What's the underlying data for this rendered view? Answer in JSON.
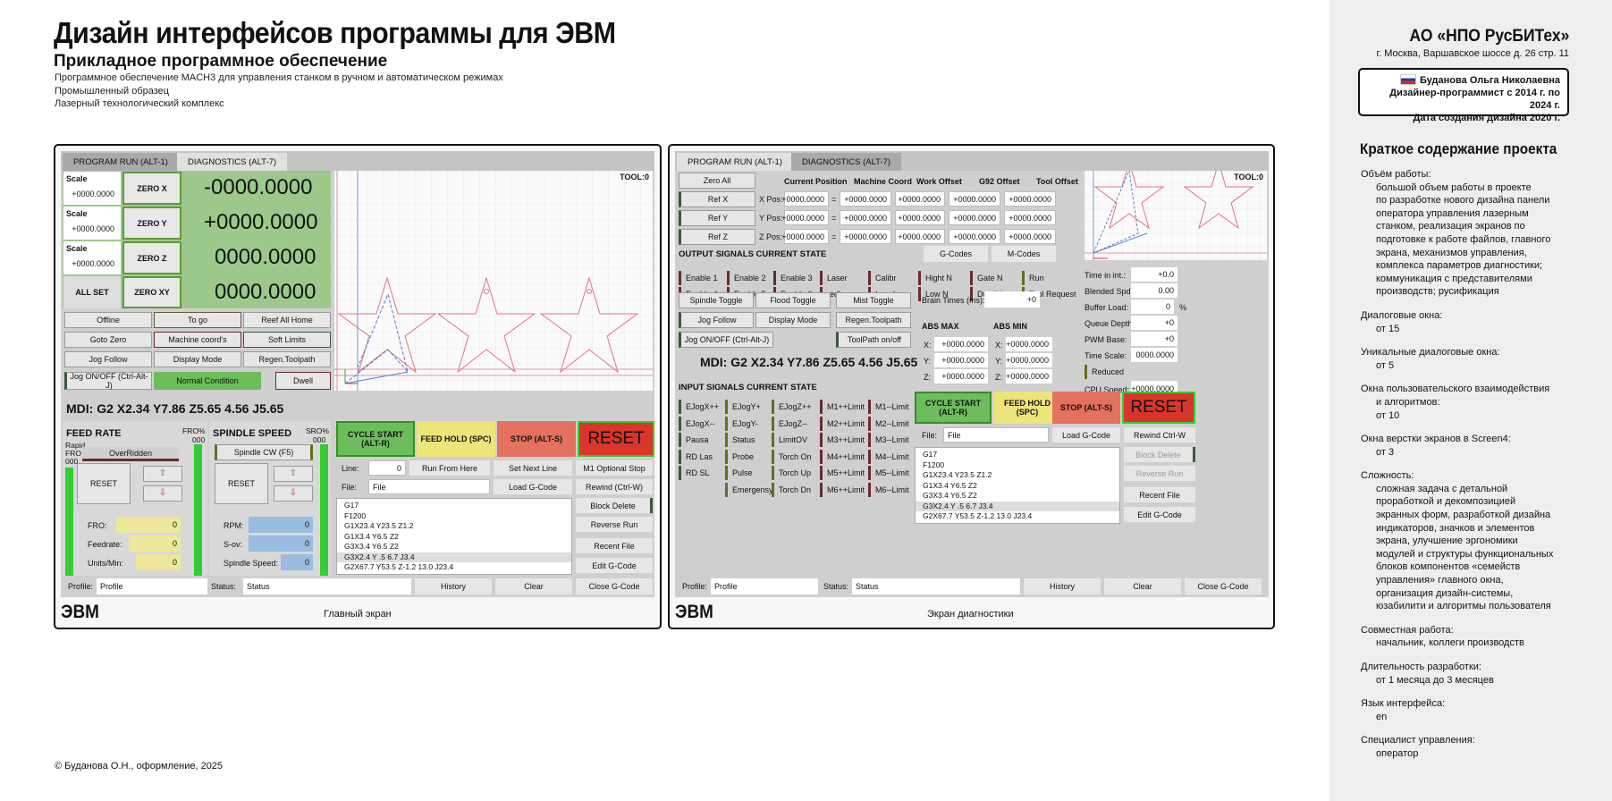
{
  "header": {
    "title": "Дизайн интерфейсов программы для ЭВМ",
    "subtitle": "Прикладное программное обеспечение",
    "lines": [
      "Программное обеспечение MACH3 для управления станком в ручном и автоматическом режимах",
      "Промышленный образец",
      "Лазерный технологический комплекс"
    ]
  },
  "footer": {
    "copyright": "© Буданова О.Н., оформление, 2025"
  },
  "side": {
    "org": "АО «НПО РусБИТех»",
    "address": "г. Москва, Варшавское шоссе д. 26 стр. 11",
    "card": [
      "Буданова Ольга Николаевна",
      "Дизайнер-программист с 2014 г. по 2024 г.",
      "Дата создания дизайна 2020 г."
    ],
    "summary_title": "Краткое содержание проекта",
    "summary": [
      {
        "k": "Объём работы:",
        "v": [
          "большой объем работы в проекте",
          "по разработке нового дизайна панели",
          "оператора управления лазерным",
          "станком, реализация экранов по",
          "подготовке к работе файлов, главного",
          "экрана, механизмов управления,",
          "комплекса параметров диагностики;",
          "коммуникация с представителями",
          "производств; русификация"
        ]
      },
      {
        "k": "Диалоговые окна:",
        "v": [
          "от 15"
        ]
      },
      {
        "k": "Уникальные диалоговые окна:",
        "v": [
          "от 5"
        ]
      },
      {
        "k": "Окна пользовательского взаимодействия",
        "v": [
          "и алгоритмов:",
          "от 10"
        ]
      },
      {
        "k": "Окна верстки экранов в Screen4:",
        "v": [
          "от 3"
        ]
      },
      {
        "k": "Сложность:",
        "v": [
          "сложная задача с детальной",
          "проработкой и декомпозицией",
          "экранных форм, разработкой дизайна",
          "индикаторов, значков и элементов",
          "экрана, улучшение эргономики",
          "модулей и структуры функциональных",
          "блоков компонентов «семейств",
          "управления» главного окна,",
          "организация дизайн-системы,",
          "юзабилити и алгоритмы пользователя"
        ]
      },
      {
        "k": "Совместная работа:",
        "v": [
          "начальник, коллеги производств"
        ]
      },
      {
        "k": "Длительность разработки:",
        "v": [
          "от 1 месяца до 3 месяцев"
        ]
      },
      {
        "k": "Язык интерфейса:",
        "v": [
          "en"
        ]
      },
      {
        "k": "Специалист управления:",
        "v": [
          "оператор"
        ]
      }
    ]
  },
  "colors": {
    "accent_green": "#33cc33",
    "dro_green": "#9cc98b",
    "reset_red": "#d9352a"
  },
  "common": {
    "tab1": "PROGRAM RUN (ALT-1)",
    "tab2": "DIAGNOSTICS (ALT-7)",
    "tool": "TOOL:0",
    "mdi": "MDI: G2 X2.34 Y7.86 Z5.65 4.56 J5.65",
    "cycle": "CYCLE START (ALT-R)",
    "hold": "FEED HOLD (SPC)",
    "stop": "STOP (ALT-S)",
    "reset": "RESET",
    "file_lbl": "File:",
    "file": "File",
    "load": "Load G-Code",
    "profile_lbl": "Profile:",
    "profile": "Profile",
    "status_lbl": "Status:",
    "status": "Status",
    "history": "History",
    "clear": "Clear",
    "close": "Close G-Code",
    "logo": "ЭВМ",
    "gcode": [
      "G17",
      "F1200",
      "G1X23.4 Y23.5 Z1.2",
      "G1X3.4 Y6.5 Z2",
      "G3X3.4 Y6.5 Z2",
      "G3X2.4 Y .5 6.7 J3.4",
      "G2X67.7 Y53.5 Z-1.2 13.0 J23.4"
    ],
    "recent": "Recent File",
    "edit": "Edit G-Code"
  },
  "main": {
    "caption": "Главный экран",
    "scale": "Scale",
    "scale_val": "+0000.0000",
    "zero_x": "ZERO X",
    "zero_y": "ZERO Y",
    "zero_z": "ZERO Z",
    "zero_xy": "ZERO XY",
    "all_set": "ALL SET",
    "dro": [
      "-0000.0000",
      "+0000.0000",
      "0000.0000",
      "0000.0000"
    ],
    "btns": [
      "Offline",
      "To go",
      "Reef All Home",
      "Goto Zero",
      "Machine coord's",
      "Soft Limits",
      "Jog Follow",
      "Display Mode",
      "Regen.Toolpath"
    ],
    "jog": "Jog ON/OFF (Ctrl-Alt-J)",
    "normal": "Normal Condition",
    "dwell": "Dwell",
    "feed_title": "FEED RATE",
    "fro": "FRO%",
    "fro_v": "000",
    "rapid": "Rapid",
    "rapid2": "FRO",
    "rapid_v": "000",
    "overridden": "OverRidden",
    "reset": "RESET",
    "fro_lbl": "FRO:",
    "fro_val": "0",
    "feedrate_lbl": "Feedrate:",
    "feedrate_val": "0",
    "units_lbl": "Units/Min:",
    "units_val": "0",
    "spindle_title": "SPINDLE SPEED",
    "sro": "SRO%",
    "sro_v": "000",
    "spindle_cw": "Spindle CW (F5)",
    "rpm_lbl": "RPM:",
    "rpm_val": "0",
    "sov_lbl": "S-ov:",
    "sov_val": "0",
    "sspeed_lbl": "Spindle Speed:",
    "sspeed_val": "0",
    "line_lbl": "Line:",
    "line_val": "0",
    "run_from": "Run From Here",
    "set_next": "Set Next Line",
    "m1": "M1 Optional Stop",
    "rewind": "Rewind (Ctrl-W)",
    "block_del": "Block Delete",
    "reverse": "Reverse Run"
  },
  "diag": {
    "caption": "Экран диагностики",
    "zero_all": "Zero All",
    "ref": [
      "Ref X",
      "Ref Y",
      "Ref Z"
    ],
    "cols": [
      "Current Position",
      "Machine Coord",
      "Work Offset",
      "G92 Offset",
      "Tool Offset"
    ],
    "pos": [
      "X Pos:",
      "Y Pos:",
      "Z Pos:"
    ],
    "val": "+0000.0000",
    "eq": "=",
    "out_title": "OUTPUT SIGNALS CURRENT STATE",
    "gcodes": "G-Codes",
    "mcodes": "M-Codes",
    "out": [
      [
        "Enable 1",
        "Enable 2",
        "Enable 3",
        "Laser",
        "Calibr",
        "Hight N",
        "Gate N",
        "Run"
      ],
      [
        "Enable 4",
        "Enable 5",
        "Enable 6",
        "redlamp",
        "In pulse",
        "Low N",
        "Dwell Active",
        "Tool Request"
      ]
    ],
    "right_lbls": [
      "Time in int.:",
      "Blended Spd:",
      "Buffer Load:",
      "Queue Depth:",
      "PWM Base:",
      "Time Scale:"
    ],
    "right_vals": [
      "+0.0",
      "0.00",
      "0",
      "+0",
      "+0",
      "0000.0000"
    ],
    "pct": "%",
    "reduced": "Reduced",
    "cpu_lbl": "CPU Speed:",
    "cpu_val": "+0000.0000",
    "toggles": [
      "Spindle Toggle",
      "Flood Toggle",
      "Mist Toggle",
      "Jog Follow",
      "Display Mode",
      "Regen.Toolpath"
    ],
    "jog": "Jog ON/OFF (Ctrl-Alt-J)",
    "toolpath": "ToolPath on/off",
    "brain": "Brain Times (ms):",
    "brain_val": "+0",
    "abs_max": "ABS MAX",
    "abs_min": "ABS MIN",
    "axes": [
      "X:",
      "Y:",
      "Z:"
    ],
    "in_title": "INPUT SIGNALS CURRENT STATE",
    "in": [
      [
        "EJogX++",
        "EJogX--",
        "Pausa",
        "RD Las",
        "RD SL"
      ],
      [
        "EJogY+",
        "EJogY-",
        "Status",
        "Probe",
        "Pulse",
        "Emergensy"
      ],
      [
        "EJogZ++",
        "EJogZ--",
        "LimitOV",
        "Torch On",
        "Torch Up",
        "Torch Dn"
      ],
      [
        "M1++Limit",
        "M2++Limit",
        "M3++Limit",
        "M4++Limit",
        "M5++Limit",
        "M6++Limit"
      ],
      [
        "M1--Limit",
        "M2--Limit",
        "M3--Limit",
        "M4--Limit",
        "M5--Limit",
        "M6--Limit"
      ]
    ],
    "rewind": "Rewind Ctrl-W",
    "block_del": "Block Delete",
    "reverse": "Reverse Run"
  }
}
